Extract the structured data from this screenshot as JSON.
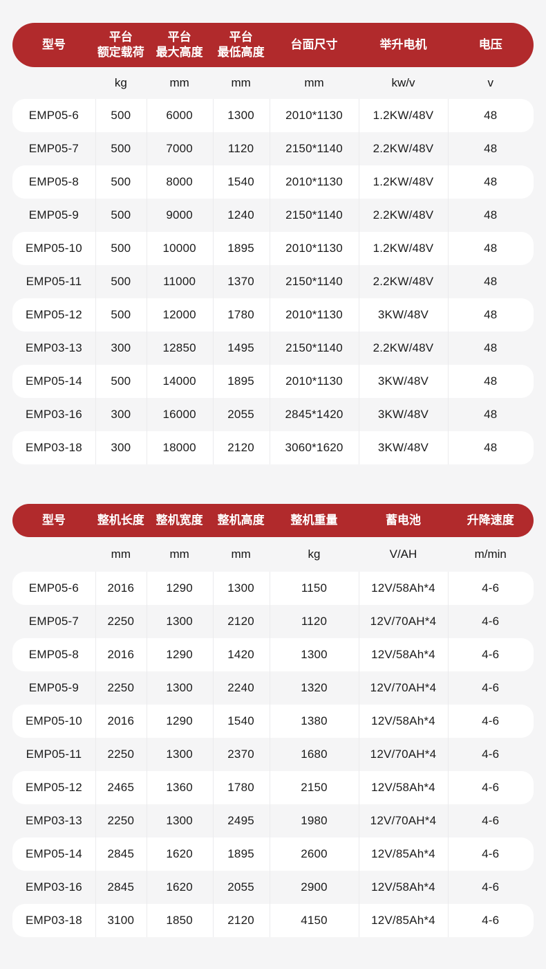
{
  "page": {
    "background": "#f5f5f6",
    "accent_red": "#b12a2c",
    "row_white": "#ffffff",
    "divider": "#ebebed"
  },
  "tables": [
    {
      "headers": [
        [
          "型号"
        ],
        [
          "平台",
          "额定载荷"
        ],
        [
          "平台",
          "最大高度"
        ],
        [
          "平台",
          "最低高度"
        ],
        [
          "台面尺寸"
        ],
        [
          "举升电机"
        ],
        [
          "电压"
        ]
      ],
      "units": [
        "",
        "kg",
        "mm",
        "mm",
        "mm",
        "kw/v",
        "v"
      ],
      "rows": [
        [
          "EMP05-6",
          "500",
          "6000",
          "1300",
          "2010*1130",
          "1.2KW/48V",
          "48"
        ],
        [
          "EMP05-7",
          "500",
          "7000",
          "1120",
          "2150*1140",
          "2.2KW/48V",
          "48"
        ],
        [
          "EMP05-8",
          "500",
          "8000",
          "1540",
          "2010*1130",
          "1.2KW/48V",
          "48"
        ],
        [
          "EMP05-9",
          "500",
          "9000",
          "1240",
          "2150*1140",
          "2.2KW/48V",
          "48"
        ],
        [
          "EMP05-10",
          "500",
          "10000",
          "1895",
          "2010*1130",
          "1.2KW/48V",
          "48"
        ],
        [
          "EMP05-11",
          "500",
          "11000",
          "1370",
          "2150*1140",
          "2.2KW/48V",
          "48"
        ],
        [
          "EMP05-12",
          "500",
          "12000",
          "1780",
          "2010*1130",
          "3KW/48V",
          "48"
        ],
        [
          "EMP03-13",
          "300",
          "12850",
          "1495",
          "2150*1140",
          "2.2KW/48V",
          "48"
        ],
        [
          "EMP05-14",
          "500",
          "14000",
          "1895",
          "2010*1130",
          "3KW/48V",
          "48"
        ],
        [
          "EMP03-16",
          "300",
          "16000",
          "2055",
          "2845*1420",
          "3KW/48V",
          "48"
        ],
        [
          "EMP03-18",
          "300",
          "18000",
          "2120",
          "3060*1620",
          "3KW/48V",
          "48"
        ]
      ]
    },
    {
      "headers": [
        [
          "型号"
        ],
        [
          "整机长度"
        ],
        [
          "整机宽度"
        ],
        [
          "整机高度"
        ],
        [
          "整机重量"
        ],
        [
          "蓄电池"
        ],
        [
          "升降速度"
        ]
      ],
      "units": [
        "",
        "mm",
        "mm",
        "mm",
        "kg",
        "V/AH",
        "m/min"
      ],
      "rows": [
        [
          "EMP05-6",
          "2016",
          "1290",
          "1300",
          "1150",
          "12V/58Ah*4",
          "4-6"
        ],
        [
          "EMP05-7",
          "2250",
          "1300",
          "2120",
          "1120",
          "12V/70AH*4",
          "4-6"
        ],
        [
          "EMP05-8",
          "2016",
          "1290",
          "1420",
          "1300",
          "12V/58Ah*4",
          "4-6"
        ],
        [
          "EMP05-9",
          "2250",
          "1300",
          "2240",
          "1320",
          "12V/70AH*4",
          "4-6"
        ],
        [
          "EMP05-10",
          "2016",
          "1290",
          "1540",
          "1380",
          "12V/58Ah*4",
          "4-6"
        ],
        [
          "EMP05-11",
          "2250",
          "1300",
          "2370",
          "1680",
          "12V/70AH*4",
          "4-6"
        ],
        [
          "EMP05-12",
          "2465",
          "1360",
          "1780",
          "2150",
          "12V/58Ah*4",
          "4-6"
        ],
        [
          "EMP03-13",
          "2250",
          "1300",
          "2495",
          "1980",
          "12V/70AH*4",
          "4-6"
        ],
        [
          "EMP05-14",
          "2845",
          "1620",
          "1895",
          "2600",
          "12V/85Ah*4",
          "4-6"
        ],
        [
          "EMP03-16",
          "2845",
          "1620",
          "2055",
          "2900",
          "12V/58Ah*4",
          "4-6"
        ],
        [
          "EMP03-18",
          "3100",
          "1850",
          "2120",
          "4150",
          "12V/85Ah*4",
          "4-6"
        ]
      ]
    }
  ]
}
